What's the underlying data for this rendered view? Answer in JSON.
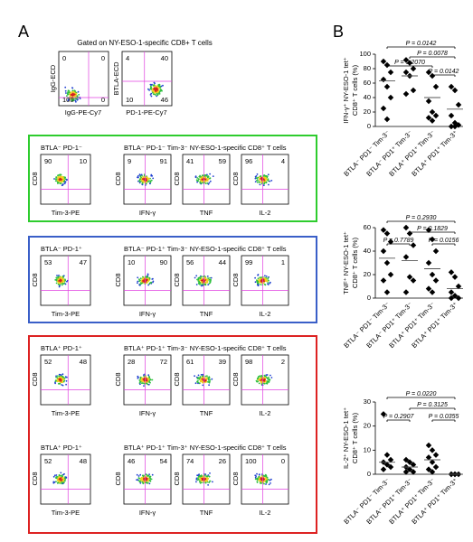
{
  "panel_a": {
    "label": "A",
    "gating": {
      "title": "Gated on NY-ESO-1-specific CD8+ T cells",
      "plots": [
        {
          "y_label": "IgG-ECD",
          "x_label": "IgG-PE-Cy7",
          "quadrants": [
            0,
            0,
            100,
            0
          ]
        },
        {
          "y_label": "BTLA-ECD",
          "x_label": "PD-1-PE-Cy7",
          "quadrants": [
            4,
            40,
            10,
            46
          ]
        }
      ]
    },
    "y_label": "CD8",
    "x_labels": [
      "Tim-3-PE",
      "IFN-γ",
      "TNF",
      "IL-2"
    ],
    "groups": [
      {
        "rows": [
          {
            "gate_title": "BTLA⁻ PD-1⁻",
            "title": "BTLA⁻ PD-1⁻ Tim-3⁻ NY-ESO-1-specific CD8⁺ T cells",
            "quadrants": [
              [
                90,
                10
              ],
              [
                9,
                91
              ],
              [
                41,
                59
              ],
              [
                96,
                4
              ]
            ]
          }
        ]
      },
      {
        "rows": [
          {
            "gate_title": "BTLA⁻ PD-1⁺",
            "title": "BTLA⁻ PD-1⁺ Tim-3⁻ NY-ESO-1-specific CD8⁺ T cells",
            "quadrants": [
              [
                53,
                47
              ],
              [
                10,
                90
              ],
              [
                56,
                44
              ],
              [
                99,
                1
              ]
            ]
          }
        ]
      },
      {
        "rows": [
          {
            "gate_title": "BTLA⁺ PD-1⁺",
            "title": "BTLA⁺ PD-1⁺ Tim-3⁻ NY-ESO-1-specific CD8⁺ T cells",
            "quadrants": [
              [
                52,
                48
              ],
              [
                28,
                72
              ],
              [
                61,
                39
              ],
              [
                98,
                2
              ]
            ]
          },
          {
            "gate_title": "BTLA⁺ PD-1⁺",
            "title": "BTLA⁺ PD-1⁺ Tim-3⁺ NY-ESO-1-specific CD8⁺ T cells",
            "quadrants": [
              [
                52,
                48
              ],
              [
                46,
                54
              ],
              [
                74,
                26
              ],
              [
                100,
                0
              ]
            ]
          }
        ]
      }
    ]
  },
  "panel_b": {
    "label": "B",
    "group_labels": [
      "BTLA⁻ PD1⁻ Tim-3⁻",
      "BTLA⁻ PD1⁺ Tim-3⁻",
      "BTLA⁺ PD1⁺ Tim-3⁻",
      "BTLA⁺ PD1⁺ Tim-3⁺"
    ],
    "plots": [
      {
        "y_label": [
          "IFN-γ⁺ NY-ESO-1 tet⁺",
          "CD8⁺ T cells (%)"
        ],
        "ylim": [
          0,
          100
        ],
        "yticks": [
          0,
          20,
          40,
          60,
          80,
          100
        ],
        "groups": [
          {
            "values": [
              90,
              85,
              75,
              65,
              55,
              40,
              25,
              10
            ],
            "mean": 63
          },
          {
            "values": [
              92,
              88,
              80,
              75,
              70,
              50,
              45
            ],
            "mean": 70
          },
          {
            "values": [
              75,
              70,
              55,
              35,
              20,
              15,
              12,
              8
            ],
            "mean": 40
          },
          {
            "values": [
              55,
              50,
              30,
              15,
              5,
              2,
              0,
              0
            ],
            "mean": 24
          }
        ],
        "p_values": [
          "P = 0.0142",
          "P = 0.0078",
          "P = 0.2070",
          "P = 0.0142"
        ]
      },
      {
        "y_label": [
          "TNF⁺ NY-ESO-1 tet⁺",
          "CD8⁺ T cells (%)"
        ],
        "ylim": [
          0,
          60
        ],
        "yticks": [
          0,
          20,
          40,
          60
        ],
        "groups": [
          {
            "values": [
              58,
              55,
              48,
              40,
              30,
              20,
              15,
              5
            ],
            "mean": 34
          },
          {
            "values": [
              60,
              55,
              45,
              35,
              18,
              15,
              5
            ],
            "mean": 32
          },
          {
            "values": [
              58,
              50,
              40,
              30,
              20,
              15,
              8,
              5
            ],
            "mean": 25
          },
          {
            "values": [
              22,
              18,
              10,
              5,
              2,
              0,
              0
            ],
            "mean": 8
          }
        ],
        "p_values": [
          "P = 0.2930",
          "P = 0.1829",
          "P = 0.7789",
          "P = 0.0156"
        ]
      },
      {
        "y_label": [
          "IL-2⁺ NY-ESO-1 tet⁺",
          "CD8⁺ T cells (%)"
        ],
        "ylim": [
          0,
          30
        ],
        "yticks": [
          0,
          10,
          20,
          30
        ],
        "groups": [
          {
            "values": [
              25,
              8,
              6,
              5,
              4,
              3,
              2
            ],
            "mean": 5
          },
          {
            "values": [
              6,
              5,
              4,
              3,
              2,
              1,
              1
            ],
            "mean": 3
          },
          {
            "values": [
              12,
              10,
              8,
              7,
              5,
              3,
              2,
              1
            ],
            "mean": 6
          },
          {
            "values": [
              0,
              0,
              0,
              0,
              0
            ],
            "mean": 0
          }
        ],
        "p_values": [
          "P = 0.0220",
          "P = 0.3125",
          "P = 0.2907",
          "P = 0.0355"
        ]
      }
    ]
  }
}
